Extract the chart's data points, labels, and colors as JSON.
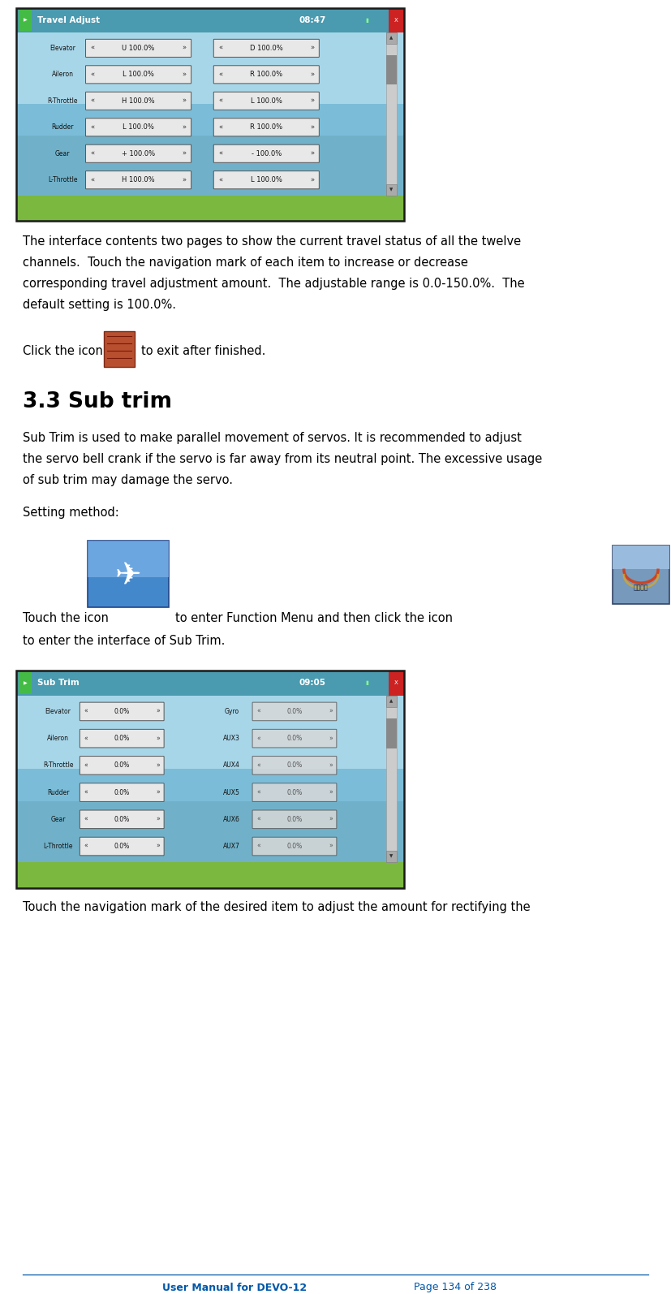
{
  "bg_color": "#ffffff",
  "text_color": "#000000",
  "footer_color": "#0057a8",
  "page_title": "User Manual for DEVO-12",
  "page_number": "Page 134 of 238",
  "para1_lines": [
    "The interface contents two pages to show the current travel status of all the twelve",
    "channels.  Touch the navigation mark of each item to increase or decrease",
    "corresponding travel adjustment amount.  The adjustable range is 0.0-150.0%.  The",
    "default setting is 100.0%."
  ],
  "click_before": "Click the icon",
  "click_after": "to exit after finished.",
  "section_title": "3.3 Sub trim",
  "para2_lines": [
    "Sub Trim is used to make parallel movement of servos. It is recommended to adjust",
    "the servo bell crank if the servo is far away from its neutral point. The excessive usage",
    "of sub trim may damage the servo."
  ],
  "setting_method": "Setting method:",
  "touch_line1_before": "Touch the icon",
  "touch_line1_middle": "to enter Function Menu and then click the icon",
  "touch_line2": "to enter the interface of Sub Trim.",
  "screen1_title": "Travel Adjust",
  "screen1_time": "08:47",
  "screen1_rows": [
    {
      "label": "Elevator",
      "lval": "U 100.0%",
      "rval": "D 100.0%"
    },
    {
      "label": "Aileron",
      "lval": "L 100.0%",
      "rval": "R 100.0%"
    },
    {
      "label": "R-Throttle",
      "lval": "H 100.0%",
      "rval": "L 100.0%"
    },
    {
      "label": "Rudder",
      "lval": "L 100.0%",
      "rval": "R 100.0%"
    },
    {
      "label": "Gear",
      "lval": "+ 100.0%",
      "rval": "- 100.0%"
    },
    {
      "label": "L-Throttle",
      "lval": "H 100.0%",
      "rval": "L 100.0%"
    }
  ],
  "screen2_title": "Sub Trim",
  "screen2_time": "09:05",
  "screen2_rows": [
    {
      "llabel": "Elevator",
      "lval": "0.0%",
      "rlabel": "Gyro",
      "rval": "0.0%"
    },
    {
      "llabel": "Aileron",
      "lval": "0.0%",
      "rlabel": "AUX3",
      "rval": "0.0%"
    },
    {
      "llabel": "R-Throttle",
      "lval": "0.0%",
      "rlabel": "AUX4",
      "rval": "0.0%"
    },
    {
      "llabel": "Rudder",
      "lval": "0.0%",
      "rlabel": "AUX5",
      "rval": "0.0%"
    },
    {
      "llabel": "Gear",
      "lval": "0.0%",
      "rlabel": "AUX6",
      "rval": "0.0%"
    },
    {
      "llabel": "L-Throttle",
      "lval": "0.0%",
      "rlabel": "AUX7",
      "rval": "0.0%"
    }
  ],
  "last_line": "Touch the navigation mark of the desired item to adjust the amount for rectifying the",
  "screen1_sky_top": "#b8dff0",
  "screen1_sky_mid": "#7bbdd8",
  "screen1_sky_bot": "#6aaac0",
  "screen_ground": "#7ab840",
  "screen_header": "#4a9ab0",
  "screen_border": "#1a1a1a",
  "ctrl_box_fill": "#e8e8e8",
  "ctrl_box_edge": "#555555"
}
